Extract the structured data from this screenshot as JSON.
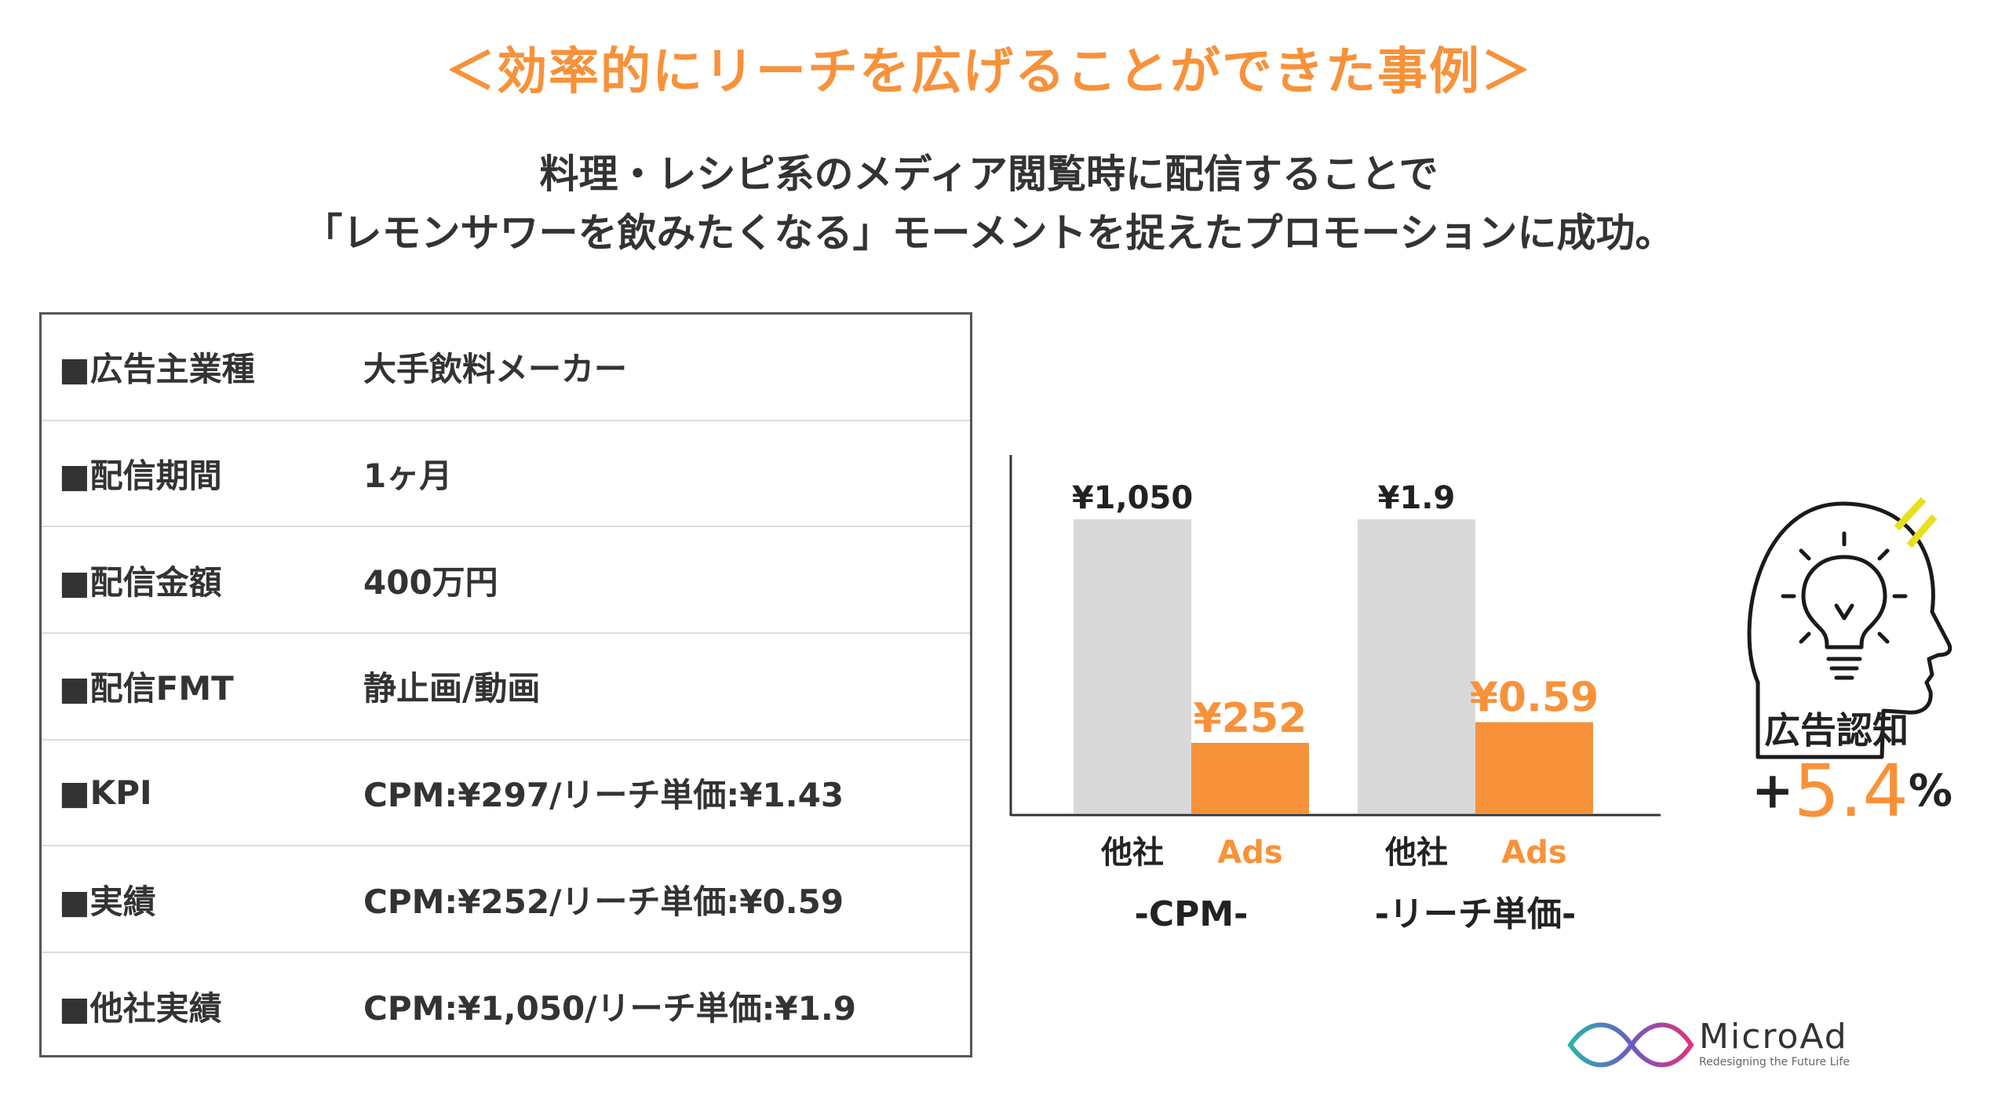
{
  "header": {
    "title": "＜効率的にリーチを広げることができた事例＞",
    "subtitle_line1": "料理・レシピ系のメディア閲覧時に配信することで",
    "subtitle_line2": "「レモンサワーを飲みたくなる」モーメントを捉えたプロモーションに成功。"
  },
  "info_table": {
    "rows": [
      {
        "label": "■広告主業種",
        "value": "大手飲料メーカー"
      },
      {
        "label": "■配信期間",
        "value": "1ヶ月"
      },
      {
        "label": "■配信金額",
        "value": "400万円"
      },
      {
        "label": "■配信FMT",
        "value": "静止画/動画"
      },
      {
        "label": "■KPI",
        "value": "CPM:¥297/リーチ単価:¥1.43"
      },
      {
        "label": "■実績",
        "value": "CPM:¥252/リーチ単価:¥0.59"
      },
      {
        "label": "■他社実績",
        "value": "CPM:¥1,050/リーチ単価:¥1.9"
      }
    ]
  },
  "chart_data": {
    "type": "bar",
    "title": "",
    "groups": [
      {
        "label": "-CPM-",
        "bars": [
          {
            "category": "他社",
            "value": 1050,
            "label": "¥1,050"
          },
          {
            "category": "Ads",
            "value": 252,
            "label": "¥252"
          }
        ]
      },
      {
        "label": "-リーチ単価-",
        "bars": [
          {
            "category": "他社",
            "value": 1.9,
            "label": "¥1.9"
          },
          {
            "category": "Ads",
            "value": 0.59,
            "label": "¥0.59"
          }
        ]
      }
    ],
    "colors": {
      "other": "#d9d9d9",
      "ads": "#f7923a"
    },
    "grid": false
  },
  "award": {
    "label": "広告認知",
    "plus": "+",
    "value": "5.4",
    "unit": "%",
    "icon": "head-lightbulb-icon"
  },
  "branding": {
    "name": "MicroAd",
    "tagline": "Redesigning the Future Life"
  },
  "colors": {
    "accent": "#f7923a",
    "text": "#333333",
    "bar_gray": "#d9d9d9",
    "spark": "#e8e01a"
  }
}
